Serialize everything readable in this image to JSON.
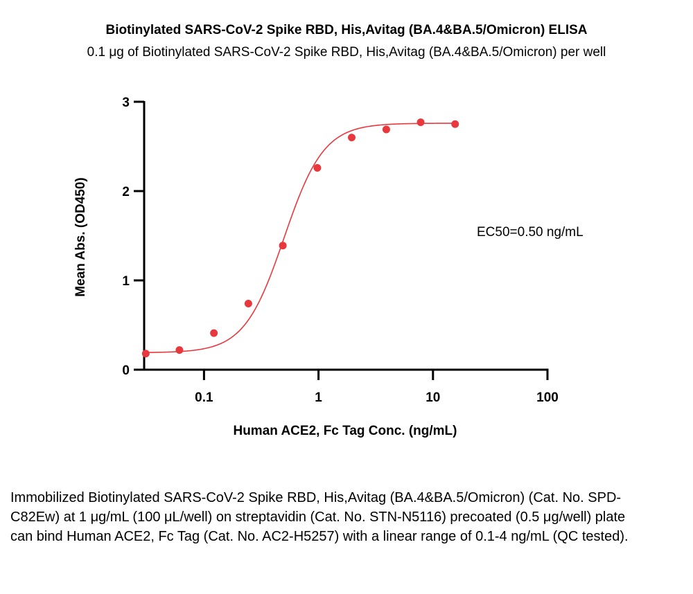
{
  "header": {
    "title": "Biotinylated SARS-CoV-2 Spike RBD, His,Avitag (BA.4&BA.5/Omicron) ELISA",
    "subtitle": "0.1 μg of Biotinylated SARS-CoV-2 Spike RBD, His,Avitag (BA.4&BA.5/Omicron) per well"
  },
  "chart_data": {
    "type": "scatter",
    "title": "Biotinylated SARS-CoV-2 Spike RBD, His,Avitag (BA.4&BA.5/Omicron) ELISA",
    "subtitle": "0.1 μg of Biotinylated SARS-CoV-2 Spike RBD, His,Avitag (BA.4&BA.5/Omicron) per well",
    "xlabel": "Human ACE2, Fc Tag Conc. (ng/mL)",
    "ylabel": "Mean Abs. (OD450)",
    "xscale": "log",
    "xlim": [
      0.03,
      100
    ],
    "ylim": [
      0,
      3
    ],
    "xticks": [
      0.1,
      1,
      10,
      100
    ],
    "xtick_labels": [
      "0.1",
      "1",
      "10",
      "100"
    ],
    "yticks": [
      0,
      1,
      2,
      3
    ],
    "ytick_labels": [
      "0",
      "1",
      "2",
      "3"
    ],
    "grid": false,
    "color": "#e8383d",
    "x": [
      0.031,
      0.061,
      0.122,
      0.244,
      0.488,
      0.977,
      1.95,
      3.91,
      7.81,
      15.6
    ],
    "y": [
      0.18,
      0.22,
      0.41,
      0.74,
      1.39,
      2.26,
      2.6,
      2.69,
      2.77,
      2.75
    ],
    "fit": {
      "bottom": 0.19,
      "top": 2.76,
      "ec50": 0.5,
      "hill": 2.5
    },
    "annotation": "EC50=0.50 ng/mL"
  },
  "caption": "Immobilized Biotinylated SARS-CoV-2 Spike RBD, His,Avitag (BA.4&BA.5/Omicron) (Cat. No. SPD-C82Ew) at 1 μg/mL (100 μL/well) on streptavidin (Cat. No. STN-N5116) precoated (0.5 μg/well) plate can bind Human ACE2, Fc Tag (Cat. No. AC2-H5257) with a linear range of 0.1-4 ng/mL (QC tested)."
}
